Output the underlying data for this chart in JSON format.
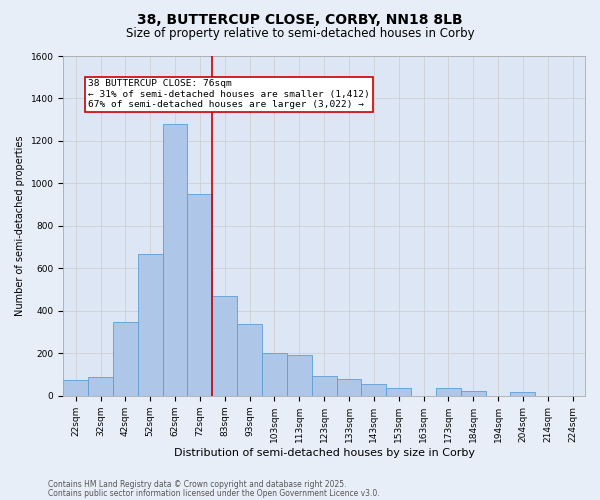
{
  "title_line1": "38, BUTTERCUP CLOSE, CORBY, NN18 8LB",
  "title_line2": "Size of property relative to semi-detached houses in Corby",
  "xlabel": "Distribution of semi-detached houses by size in Corby",
  "ylabel": "Number of semi-detached properties",
  "categories": [
    "22sqm",
    "32sqm",
    "42sqm",
    "52sqm",
    "62sqm",
    "72sqm",
    "83sqm",
    "93sqm",
    "103sqm",
    "113sqm",
    "123sqm",
    "133sqm",
    "143sqm",
    "153sqm",
    "163sqm",
    "173sqm",
    "184sqm",
    "194sqm",
    "204sqm",
    "214sqm",
    "224sqm"
  ],
  "values": [
    75,
    90,
    350,
    670,
    1280,
    950,
    470,
    340,
    200,
    190,
    95,
    80,
    55,
    35,
    0,
    35,
    25,
    0,
    20,
    0,
    0
  ],
  "bar_color": "#aec6e8",
  "bar_edge_color": "#5a9fd4",
  "annotation_box_text": "38 BUTTERCUP CLOSE: 76sqm\n← 31% of semi-detached houses are smaller (1,412)\n67% of semi-detached houses are larger (3,022) →",
  "annotation_box_color": "#ffffff",
  "annotation_box_edge_color": "#cc0000",
  "annotation_text_color": "#000000",
  "vline_color": "#cc0000",
  "ylim": [
    0,
    1600
  ],
  "yticks": [
    0,
    200,
    400,
    600,
    800,
    1000,
    1200,
    1400,
    1600
  ],
  "grid_color": "#cccccc",
  "bg_color": "#e8eef8",
  "plot_bg_color": "#dce6f4",
  "footer_line1": "Contains HM Land Registry data © Crown copyright and database right 2025.",
  "footer_line2": "Contains public sector information licensed under the Open Government Licence v3.0.",
  "title1_fontsize": 10,
  "title2_fontsize": 8.5,
  "xlabel_fontsize": 8,
  "ylabel_fontsize": 7,
  "tick_fontsize": 6.5,
  "footer_fontsize": 5.5,
  "annotation_fontsize": 6.8,
  "vline_x_index": 5.5
}
